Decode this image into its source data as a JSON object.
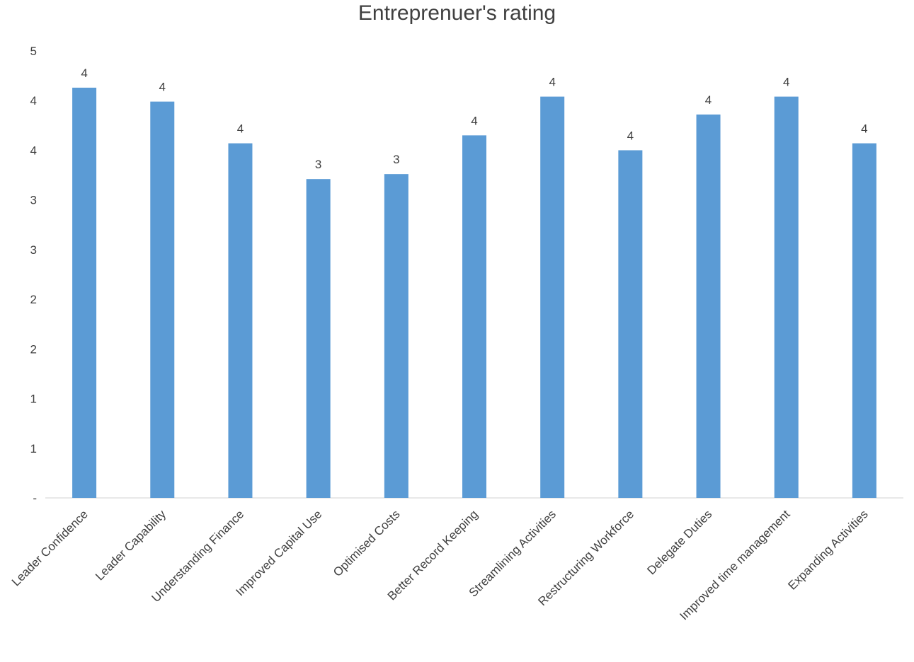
{
  "chart_data": {
    "type": "bar",
    "title": "Entreprenuer's rating",
    "xlabel": "",
    "ylabel": "",
    "categories": [
      "Leader Confidence",
      "Leader Capability",
      "Understanding Finance",
      "Improved Capital Use",
      "Optimised Costs",
      "Better Record Keeping",
      "Streamlining Activities",
      "Restructuring Workforce",
      "Delegate Duties",
      "Improved time management",
      "Expanding Activities"
    ],
    "values": [
      4.13,
      3.99,
      3.57,
      3.21,
      3.26,
      3.65,
      4.04,
      3.5,
      3.86,
      4.04,
      3.57
    ],
    "data_labels": [
      "4",
      "4",
      "4",
      "3",
      "3",
      "4",
      "4",
      "4",
      "4",
      "4",
      "4"
    ],
    "ylim": [
      0,
      4.5
    ],
    "y_ticks": [
      0,
      0.5,
      1,
      1.5,
      2,
      2.5,
      3,
      3.5,
      4,
      4.5
    ],
    "y_tick_labels": [
      "-",
      "1",
      "1",
      "2",
      "2",
      "3",
      "3",
      "4",
      "4",
      "5"
    ],
    "bar_color": "#5b9bd5",
    "axis_color": "#d9d9d9",
    "text_color": "#404040",
    "grid": false,
    "legend": "none"
  }
}
